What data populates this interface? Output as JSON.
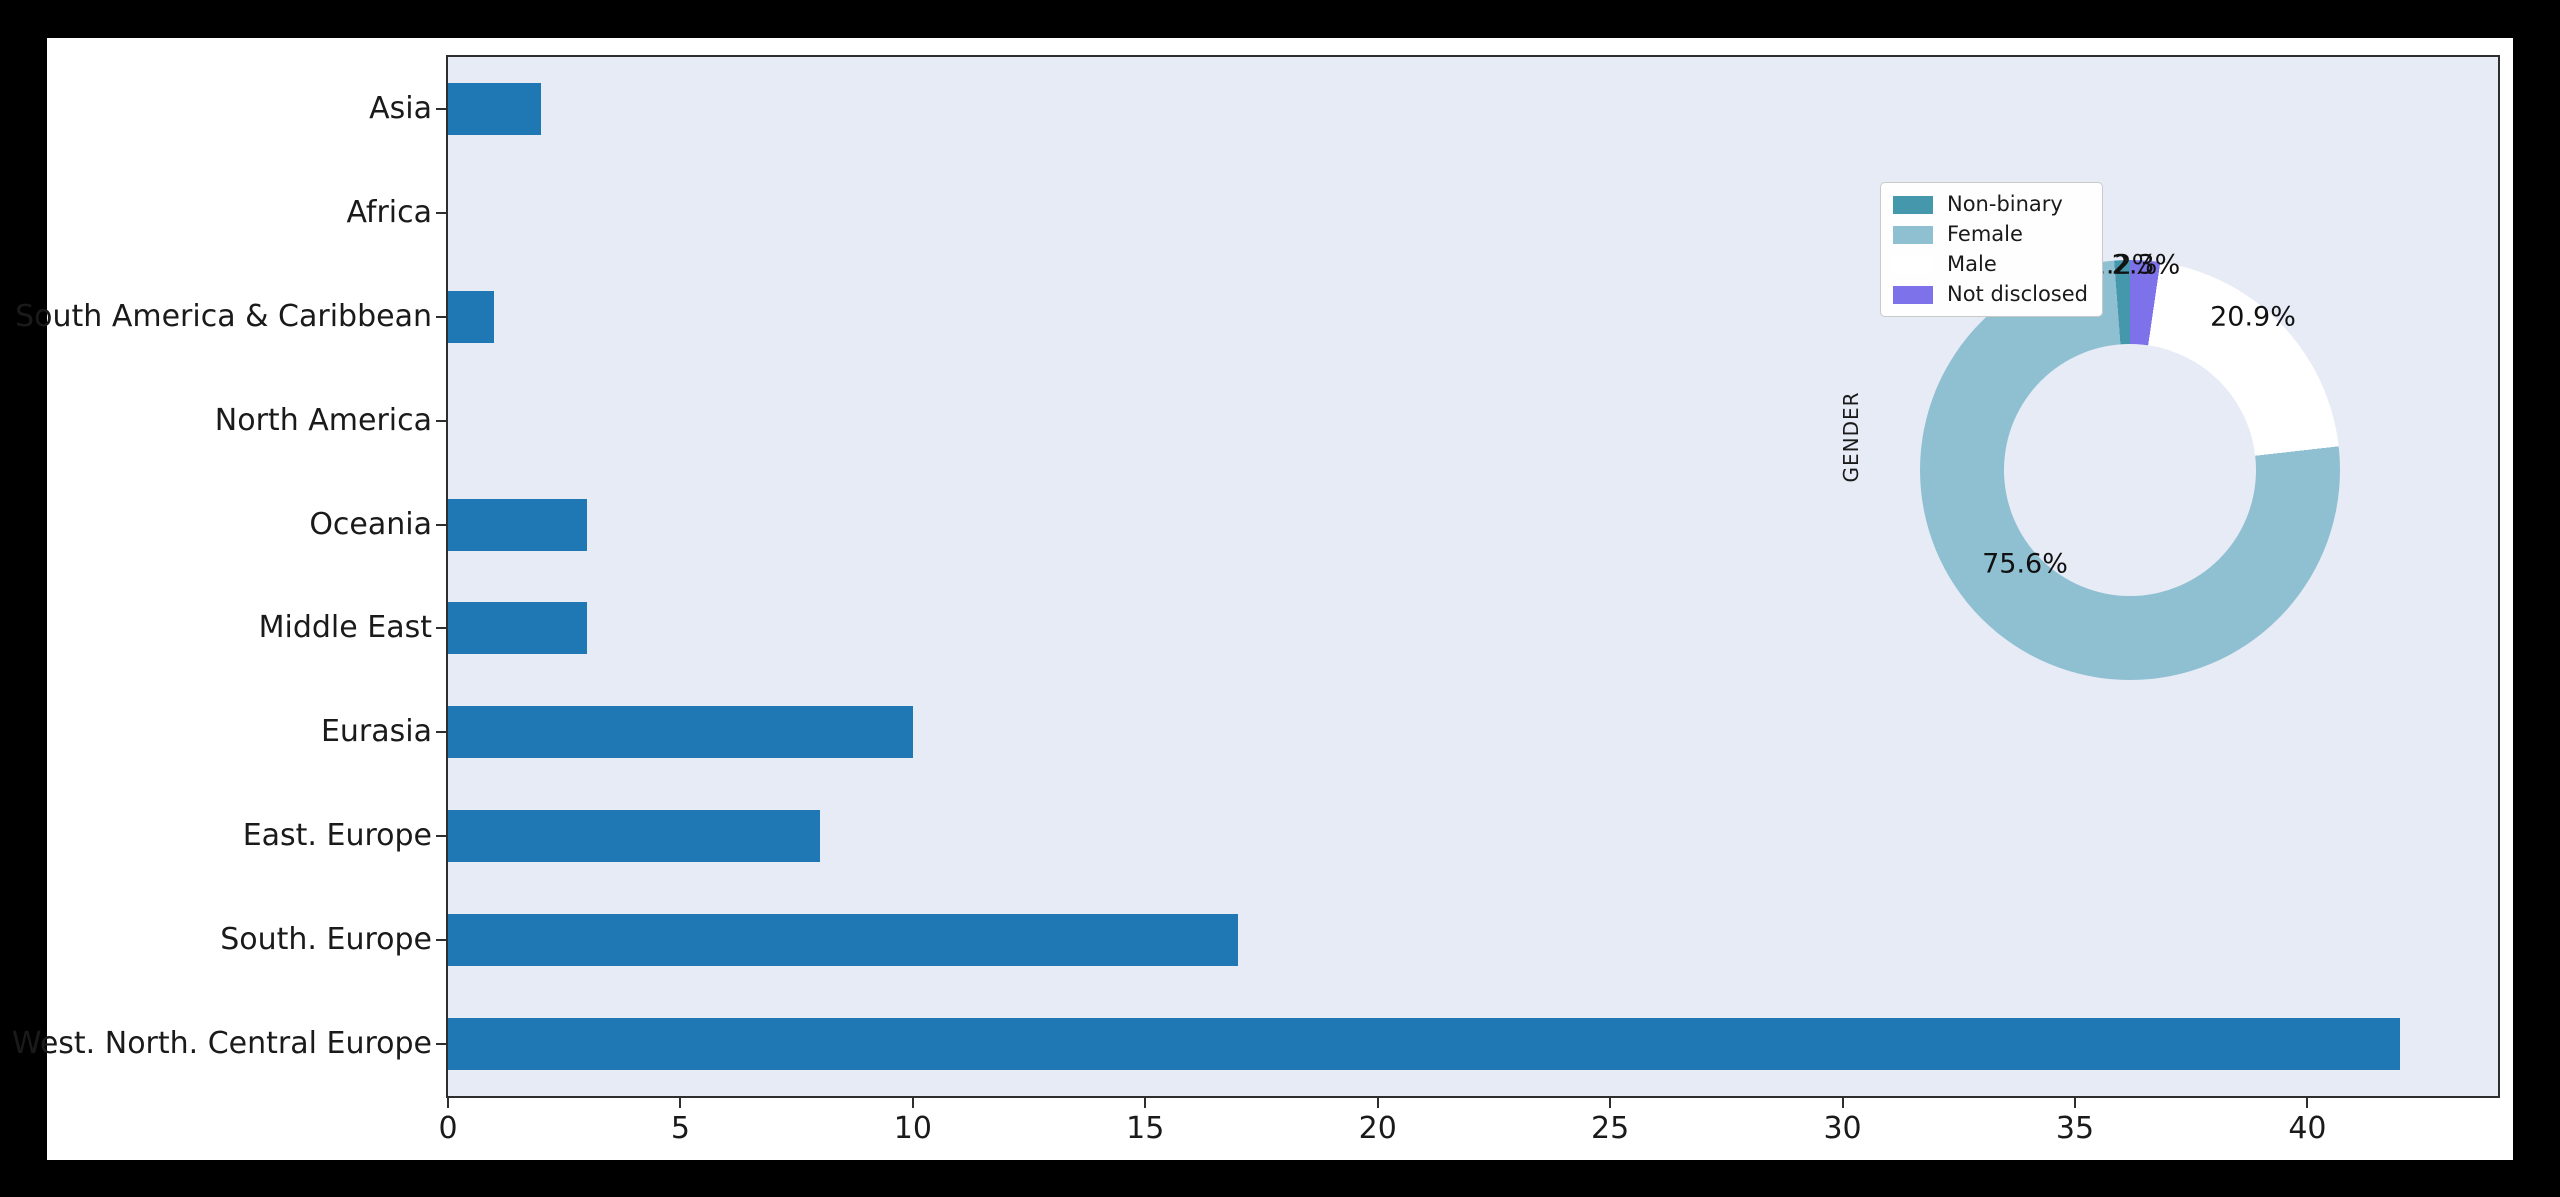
{
  "page": {
    "background_color": "#000000",
    "figure_background_color": "#ffffff"
  },
  "chart_data": [
    {
      "type": "bar",
      "orientation": "horizontal",
      "title": "",
      "xlabel": "",
      "ylabel": "",
      "categories_top_to_bottom": [
        "Asia",
        "Africa",
        "South America & Caribbean",
        "North America",
        "Oceania",
        "Middle East",
        "Eurasia",
        "East. Europe",
        "South. Europe",
        "West. North. Central Europe"
      ],
      "values": [
        2,
        0,
        1,
        0,
        3,
        3,
        10,
        8,
        17,
        42
      ],
      "x_ticks": [
        0,
        5,
        10,
        15,
        20,
        25,
        30,
        35,
        40
      ],
      "xlim": [
        0,
        44.1
      ],
      "grid": false,
      "bar_color": "#1f77b4",
      "plot_background_color": "#e7ebf6",
      "spine_color": "#2e2e2e"
    },
    {
      "type": "pie",
      "subtype": "donut",
      "ylabel": "GENDER",
      "start_angle": 90,
      "counterclockwise": true,
      "hole_ratio": 0.6,
      "slices": [
        {
          "label": "Non-binary",
          "pct": 1.2,
          "pct_label": "1.2%",
          "color": "#4598ac",
          "label_offset": [
            -7,
            -205
          ]
        },
        {
          "label": "Female",
          "pct": 75.6,
          "pct_label": "75.6%",
          "color": "#8fc0d2",
          "label_offset": [
            -105,
            94
          ]
        },
        {
          "label": "Male",
          "pct": 20.9,
          "pct_label": "20.9%",
          "color": "#ffffff",
          "label_offset": [
            123,
            -153
          ]
        },
        {
          "label": "Not disclosed",
          "pct": 2.3,
          "pct_label": "2.3%",
          "color": "#7d72e9",
          "label_offset": [
            16,
            -205
          ]
        }
      ],
      "legend_position": "upper left",
      "legend_background": "#fefefe"
    }
  ]
}
